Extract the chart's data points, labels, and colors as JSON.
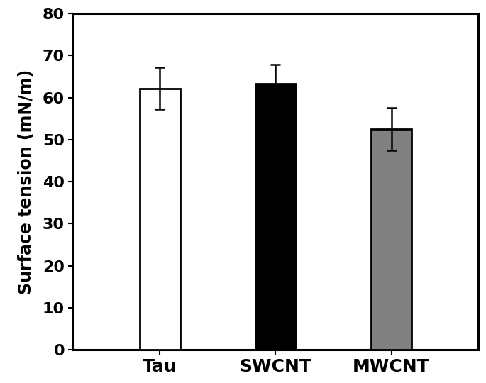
{
  "categories": [
    "Tau",
    "SWCNT",
    "MWCNT"
  ],
  "values": [
    62.2,
    63.3,
    52.5
  ],
  "errors": [
    5.0,
    4.5,
    5.0
  ],
  "bar_colors": [
    "#ffffff",
    "#000000",
    "#808080"
  ],
  "bar_edgecolors": [
    "#000000",
    "#000000",
    "#000000"
  ],
  "ylabel": "Surface tension (mN/m)",
  "ylim": [
    0,
    80
  ],
  "yticks": [
    0,
    10,
    20,
    30,
    40,
    50,
    60,
    70,
    80
  ],
  "bar_width": 0.35,
  "bar_linewidth": 2.0,
  "errorbar_capsize": 5,
  "errorbar_linewidth": 1.8,
  "errorbar_color": "#000000",
  "tick_fontsize": 16,
  "label_fontsize": 17,
  "xlabel_fontsize": 18,
  "background_color": "#ffffff",
  "spine_linewidth": 2.2,
  "figwidth": 6.85,
  "figheight": 5.4,
  "font_family": "DejaVu Sans"
}
